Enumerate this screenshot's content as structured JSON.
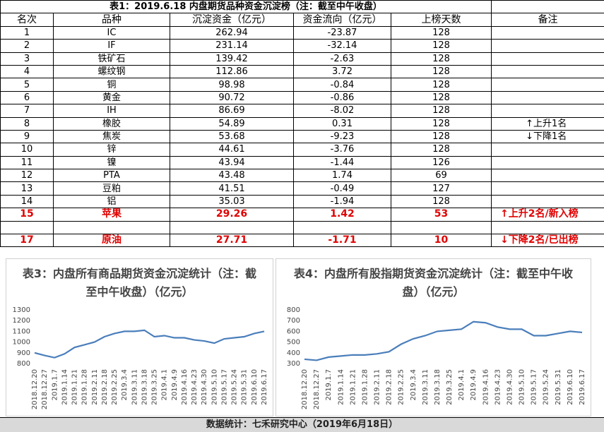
{
  "table": {
    "title": "表1：2019.6.18 内盘期货品种资金沉淀榜（注：截至中午收盘）",
    "header": [
      "名次",
      "品种",
      "沉淀资金（亿元）",
      "资金流向（亿元）",
      "上榜天数",
      "备注"
    ],
    "rows": [
      [
        "1",
        "IC",
        "262.94",
        "-23.87",
        "128"
      ],
      [
        "2",
        "IF",
        "231.14",
        "-32.14",
        "128"
      ],
      [
        "3",
        "铁矿石",
        "139.42",
        "-2.63",
        "128"
      ],
      [
        "4",
        "螺纹钢",
        "112.86",
        "3.72",
        "128"
      ],
      [
        "5",
        "铜",
        "98.98",
        "-0.84",
        "128"
      ],
      [
        "6",
        "黄金",
        "90.72",
        "-0.86",
        "128"
      ],
      [
        "7",
        "IH",
        "86.69",
        "-8.02",
        "128"
      ],
      [
        "8",
        "橡胶",
        "54.89",
        "0.31",
        "128",
        "上升1名"
      ],
      [
        "9",
        "焦炭",
        "53.68",
        "-9.23",
        "128",
        "下降1名"
      ],
      [
        "10",
        "锌",
        "44.61",
        "-3.76",
        "128"
      ],
      [
        "11",
        "镍",
        "43.94",
        "-1.44",
        "126"
      ],
      [
        "12",
        "PTA",
        "43.48",
        "1.74",
        "69"
      ],
      [
        "13",
        "豆粕",
        "41.51",
        "-0.49",
        "127"
      ],
      [
        "14",
        "铝",
        "35.03",
        "-1.94",
        "128"
      ],
      [
        "15",
        "苹果",
        "29.26",
        "1.42",
        "53",
        "上升2名/新入榜"
      ],
      [
        "17",
        "原油",
        "27.71",
        "-1.71",
        "10",
        "下降2名/已出榜"
      ]
    ]
  },
  "chart_data": [
    {
      "type": "line",
      "title": "表3：内盘所有商品期货资金沉淀统计（注：截至中午收盘）（亿元）",
      "color": "#4a7ebb",
      "grid": false,
      "categories": [
        "2018.12.20",
        "2018.12.27",
        "2019.1.7",
        "2019.1.14",
        "2019.1.21",
        "2019.1.28",
        "2019.2.11",
        "2019.2.18",
        "2019.2.25",
        "2019.3.4",
        "2019.3.11",
        "2019.3.18",
        "2019.3.25",
        "2019.4.1",
        "2019.4.9",
        "2019.4.16",
        "2019.4.23",
        "2019.4.30",
        "2019.5.10",
        "2019.5.17",
        "2019.5.24",
        "2019.5.31",
        "2019.6.10",
        "2019.6.17"
      ],
      "values": [
        900,
        875,
        855,
        890,
        950,
        975,
        1000,
        1050,
        1080,
        1100,
        1100,
        1110,
        1050,
        1060,
        1040,
        1040,
        1020,
        1010,
        990,
        1030,
        1040,
        1050,
        1080,
        1100
      ],
      "ylim": [
        800,
        1300
      ],
      "yticks": [
        800,
        900,
        1000,
        1100,
        1200,
        1300
      ]
    },
    {
      "type": "line",
      "title": "表4：内盘所有股指期货资金沉淀统计（注：截至中午收盘）（亿元）",
      "color": "#4a7ebb",
      "grid": false,
      "categories": [
        "2018.12.20",
        "2018.12.27",
        "2019.1.7",
        "2019.1.14",
        "2019.1.21",
        "2019.1.28",
        "2019.2.11",
        "2019.2.18",
        "2019.2.25",
        "2019.3.4",
        "2019.3.11",
        "2019.3.18",
        "2019.3.25",
        "2019.4.1",
        "2019.4.9",
        "2019.4.16",
        "2019.4.23",
        "2019.4.30",
        "2019.5.10",
        "2019.5.17",
        "2019.5.24",
        "2019.5.31",
        "2019.6.10",
        "2019.6.17"
      ],
      "values": [
        340,
        330,
        360,
        370,
        380,
        380,
        390,
        410,
        480,
        530,
        560,
        600,
        610,
        620,
        690,
        680,
        640,
        620,
        620,
        560,
        560,
        580,
        600,
        590
      ],
      "ylim": [
        300,
        800
      ],
      "yticks": [
        300,
        400,
        500,
        600,
        700,
        800
      ]
    }
  ],
  "footer": "数据统计：七禾研究中心（2019年6月18日）"
}
